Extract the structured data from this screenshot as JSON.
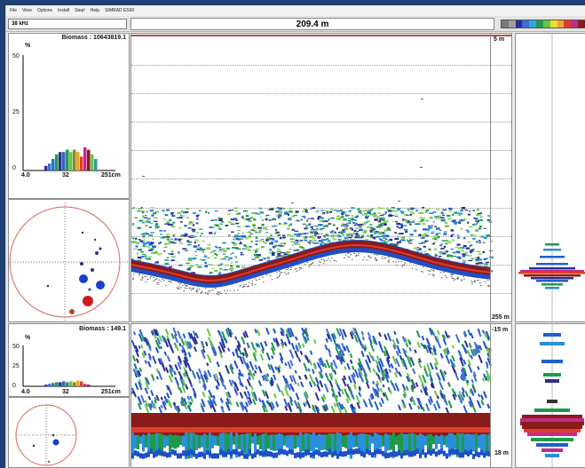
{
  "menu": [
    "File",
    "View",
    "Options",
    "Install",
    "Step!",
    "Help",
    "SIMRAD ES60"
  ],
  "frequency": "38 kHz",
  "depth_readout": "209.4 m",
  "palette": [
    "#7a7a7a",
    "#a0a0a0",
    "#2d2d8f",
    "#3f6dd6",
    "#2ea7e0",
    "#1f9a4a",
    "#65c64a",
    "#e6e02a",
    "#f2a33a",
    "#e03c2a",
    "#c22a8c",
    "#8b1a1a"
  ],
  "upper": {
    "biomass": "Biomass : 10643819.1",
    "yticks": [
      "50",
      "25",
      "0"
    ],
    "ylabel": "%",
    "xticks": [
      "4.0",
      "32",
      "251cm"
    ],
    "depth_top": "5 m",
    "depth_bottom": "255 m"
  },
  "lower": {
    "biomass": "Biomass : 149.1",
    "yticks": [
      "50",
      "25",
      "0"
    ],
    "ylabel": "%",
    "xticks": [
      "4.0",
      "32",
      "251cm"
    ],
    "depth_top": "-15 m",
    "depth_bottom": "18 m"
  },
  "upper_hist": [
    2,
    3,
    5,
    7,
    8,
    8,
    9,
    8,
    9,
    8,
    6,
    10,
    9,
    7,
    5
  ],
  "lower_hist": [
    2,
    3,
    4,
    5,
    5,
    6,
    5,
    6,
    5,
    7,
    6,
    3,
    2
  ],
  "hist_colors": [
    "#2d2d8f",
    "#3f6dd6",
    "#1f77c4",
    "#1f9a4a",
    "#2d2d8f",
    "#3a5fc2",
    "#1f9a4a",
    "#65c64a",
    "#8a8a2a",
    "#e6a52a",
    "#e03c2a",
    "#c22a8c",
    "#8b1a1a",
    "#65c64a",
    "#2e9a9a"
  ]
}
